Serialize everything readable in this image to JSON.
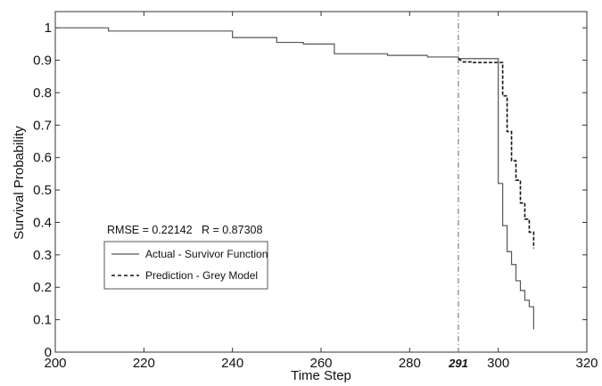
{
  "chart_data": {
    "type": "line",
    "title": "",
    "xlabel": "Time Step",
    "ylabel": "Survival Probability",
    "xlim": [
      200,
      320
    ],
    "ylim": [
      0,
      1.05
    ],
    "x_ticks": [
      200,
      220,
      240,
      260,
      280,
      300,
      320
    ],
    "y_ticks": [
      0,
      0.1,
      0.2,
      0.3,
      0.4,
      0.5,
      0.6,
      0.7,
      0.8,
      0.9,
      1
    ],
    "x_tick_labels": [
      "200",
      "220",
      "240",
      "260",
      "280",
      "300",
      "320"
    ],
    "y_tick_labels": [
      "0",
      "0.1",
      "0.2",
      "0.3",
      "0.4",
      "0.5",
      "0.6",
      "0.7",
      "0.8",
      "0.9",
      "1"
    ],
    "grid": false,
    "stats_text": "RMSE = 0.22142   R = 0.87308",
    "vline": {
      "x": 291,
      "label": "291"
    },
    "legend": {
      "placement": "bottom-left"
    },
    "series": [
      {
        "name": "Actual - Survivor Function",
        "style": "solid",
        "color": "#555555",
        "points": [
          [
            200,
            1.0
          ],
          [
            212,
            1.0
          ],
          [
            212,
            0.99
          ],
          [
            240,
            0.99
          ],
          [
            240,
            0.97
          ],
          [
            250,
            0.97
          ],
          [
            250,
            0.955
          ],
          [
            256,
            0.955
          ],
          [
            256,
            0.95
          ],
          [
            263,
            0.95
          ],
          [
            263,
            0.92
          ],
          [
            275,
            0.92
          ],
          [
            275,
            0.915
          ],
          [
            284,
            0.915
          ],
          [
            284,
            0.91
          ],
          [
            291,
            0.91
          ],
          [
            291,
            0.905
          ],
          [
            300,
            0.905
          ],
          [
            300,
            0.52
          ],
          [
            301,
            0.52
          ],
          [
            301,
            0.39
          ],
          [
            302,
            0.39
          ],
          [
            302,
            0.31
          ],
          [
            303,
            0.31
          ],
          [
            303,
            0.27
          ],
          [
            304,
            0.27
          ],
          [
            304,
            0.22
          ],
          [
            305,
            0.22
          ],
          [
            305,
            0.19
          ],
          [
            306,
            0.19
          ],
          [
            306,
            0.16
          ],
          [
            307,
            0.16
          ],
          [
            307,
            0.14
          ],
          [
            308,
            0.14
          ],
          [
            308,
            0.07
          ]
        ]
      },
      {
        "name": "Prediction - Grey Model",
        "style": "dashed",
        "color": "#111111",
        "points": [
          [
            291,
            0.905
          ],
          [
            292,
            0.895
          ],
          [
            294,
            0.895
          ],
          [
            294,
            0.893
          ],
          [
            301,
            0.893
          ],
          [
            301,
            0.79
          ],
          [
            302,
            0.79
          ],
          [
            302,
            0.68
          ],
          [
            303,
            0.68
          ],
          [
            303,
            0.59
          ],
          [
            304,
            0.59
          ],
          [
            304,
            0.53
          ],
          [
            305,
            0.53
          ],
          [
            305,
            0.46
          ],
          [
            306,
            0.46
          ],
          [
            306,
            0.41
          ],
          [
            307,
            0.41
          ],
          [
            307,
            0.37
          ],
          [
            308,
            0.37
          ],
          [
            308,
            0.32
          ]
        ]
      }
    ]
  }
}
